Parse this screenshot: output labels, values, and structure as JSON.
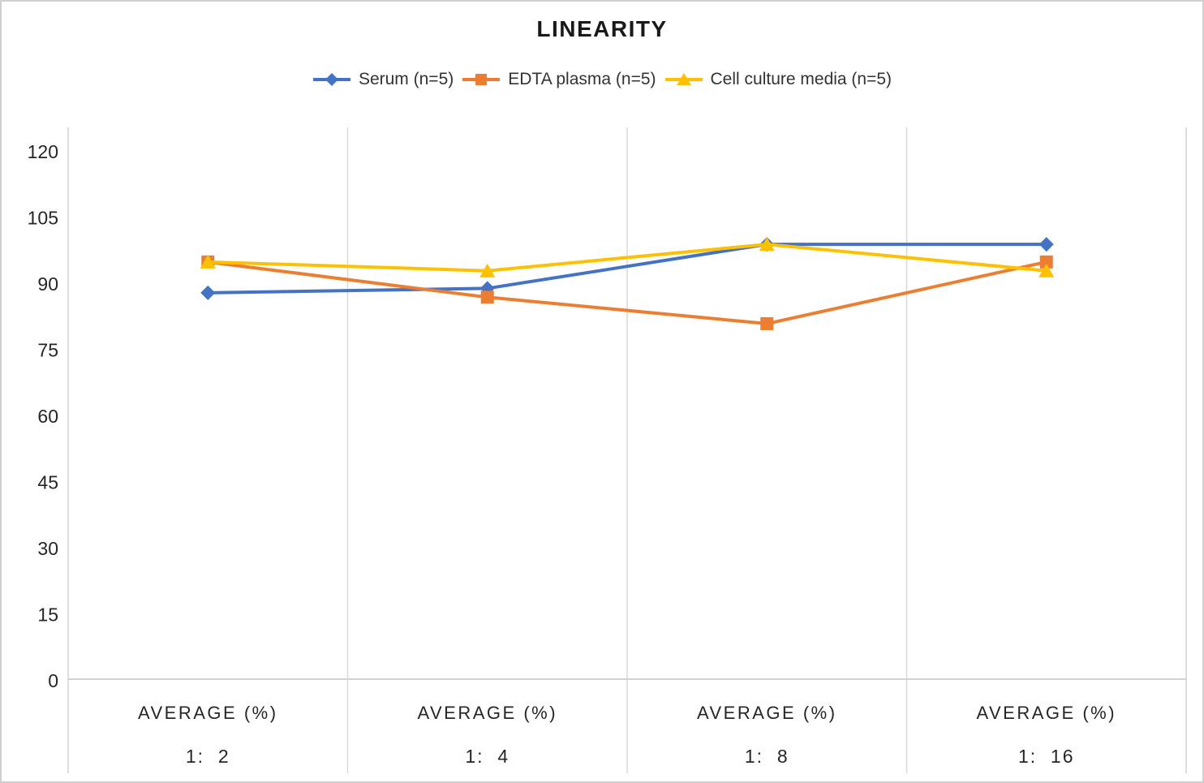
{
  "chart_data": {
    "type": "line",
    "title": "LINEARITY",
    "category_top_label": "AVERAGE (%)",
    "categories": [
      "1:  2",
      "1:  4",
      "1:  8",
      "1:  16"
    ],
    "x_axis_labels": [
      {
        "line1": "AVERAGE (%)",
        "line2": "1:  2"
      },
      {
        "line1": "AVERAGE (%)",
        "line2": "1:  4"
      },
      {
        "line1": "AVERAGE (%)",
        "line2": "1:  8"
      },
      {
        "line1": "AVERAGE (%)",
        "line2": "1:  16"
      }
    ],
    "y_ticks": [
      0,
      15,
      30,
      45,
      60,
      75,
      90,
      105,
      120
    ],
    "ylim": [
      0,
      125
    ],
    "grid": "vertical-only",
    "legend_position": "top",
    "series": [
      {
        "name": "Serum (n=5)",
        "marker": "diamond",
        "color": "#4472C4",
        "values": [
          88,
          89,
          99,
          99
        ]
      },
      {
        "name": "EDTA plasma (n=5)",
        "marker": "square",
        "color": "#ED7D31",
        "values": [
          95,
          87,
          81,
          95
        ]
      },
      {
        "name": "Cell culture media (n=5)",
        "marker": "triangle",
        "color": "#FFC000",
        "values": [
          95,
          93,
          99,
          93
        ]
      }
    ],
    "colors": {
      "grid_line": "#D9D9D9",
      "axis_line": "#D2D2D2",
      "tick_text": "#262626"
    }
  }
}
